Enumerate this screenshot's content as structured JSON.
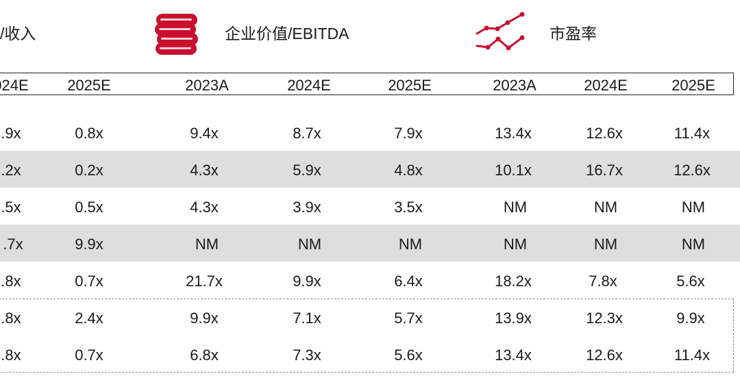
{
  "groups": [
    {
      "title": "/收入",
      "icon": "none"
    },
    {
      "title": "企业价值/EBITDA",
      "icon": "coin-stack-icon"
    },
    {
      "title": "市盈率",
      "icon": "line-chart-icon"
    }
  ],
  "years": [
    "024E",
    "2025E",
    "2023A",
    "2024E",
    "2025E",
    "2023A",
    "2024E",
    "2025E"
  ],
  "rows": [
    [
      ".9x",
      "0.8x",
      "9.4x",
      "8.7x",
      "7.9x",
      "13.4x",
      "12.6x",
      "11.4x"
    ],
    [
      ".2x",
      "0.2x",
      "4.3x",
      "5.9x",
      "4.8x",
      "10.1x",
      "16.7x",
      "12.6x"
    ],
    [
      ".5x",
      "0.5x",
      "4.3x",
      "3.9x",
      "3.5x",
      "NM",
      "NM",
      "NM"
    ],
    [
      ".7x",
      "9.9x",
      "NM",
      "NM",
      "NM",
      "NM",
      "NM",
      "NM"
    ],
    [
      ".8x",
      "0.7x",
      "21.7x",
      "9.9x",
      "6.4x",
      "18.2x",
      "7.8x",
      "5.6x"
    ],
    [
      ".8x",
      "2.4x",
      "9.9x",
      "7.1x",
      "5.7x",
      "13.9x",
      "12.3x",
      "9.9x"
    ],
    [
      ".8x",
      "0.7x",
      "6.8x",
      "7.3x",
      "5.6x",
      "13.4x",
      "12.6x",
      "11.4x"
    ]
  ],
  "colors": {
    "accent": "#c8102e",
    "band": "#dedede"
  }
}
